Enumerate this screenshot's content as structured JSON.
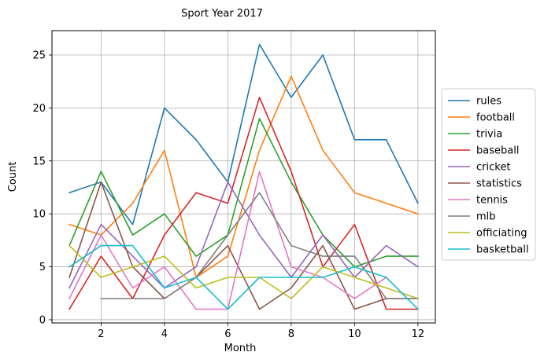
{
  "chart_data": {
    "type": "line",
    "title": "Sport Year 2017",
    "xlabel": "Month",
    "ylabel": "Count",
    "xlim": [
      0.45,
      12.55
    ],
    "ylim": [
      -0.3,
      27.3
    ],
    "xticks": [
      2,
      4,
      6,
      8,
      10,
      12
    ],
    "yticks": [
      0,
      5,
      10,
      15,
      20,
      25
    ],
    "grid": true,
    "legend_position": "right",
    "series": [
      {
        "name": "rules",
        "color": "#1f77b4",
        "x": [
          1,
          2,
          3,
          4,
          5,
          6,
          7,
          8,
          9,
          10,
          11,
          12
        ],
        "values": [
          12,
          13,
          9,
          20,
          17,
          13,
          26,
          21,
          25,
          17,
          17,
          11
        ]
      },
      {
        "name": "football",
        "color": "#ff7f0e",
        "x": [
          1,
          2,
          3,
          4,
          5,
          6,
          7,
          8,
          9,
          10,
          11,
          12
        ],
        "values": [
          9,
          8,
          11,
          16,
          4,
          6,
          16,
          23,
          16,
          12,
          11,
          10
        ]
      },
      {
        "name": "trivia",
        "color": "#2ca02c",
        "x": [
          1,
          2,
          3,
          4,
          5,
          6,
          7,
          8,
          9,
          10,
          11,
          12
        ],
        "values": [
          7,
          14,
          8,
          10,
          6,
          8,
          19,
          13,
          8,
          5,
          6,
          6
        ]
      },
      {
        "name": "baseball",
        "color": "#d62728",
        "x": [
          1,
          2,
          3,
          4,
          5,
          6,
          7,
          8,
          9,
          10,
          11,
          12
        ],
        "values": [
          1,
          6,
          2,
          8,
          12,
          11,
          21,
          14,
          5,
          9,
          1,
          1
        ]
      },
      {
        "name": "cricket",
        "color": "#9467bd",
        "x": [
          1,
          2,
          3,
          4,
          5,
          6,
          7,
          8,
          9,
          10,
          11,
          12
        ],
        "values": [
          3,
          9,
          6,
          3,
          5,
          13,
          8,
          4,
          8,
          4,
          7,
          5
        ]
      },
      {
        "name": "statistics",
        "color": "#8c564b",
        "x": [
          1,
          2,
          3,
          4,
          5,
          6,
          7,
          8,
          9,
          10,
          11,
          12
        ],
        "values": [
          4,
          13,
          5,
          2,
          4,
          7,
          1,
          3,
          7,
          1,
          2,
          2
        ]
      },
      {
        "name": "tennis",
        "color": "#e377c2",
        "x": [
          1,
          2,
          3,
          4,
          5,
          6,
          7,
          8,
          9,
          10,
          11
        ],
        "values": [
          2,
          8,
          3,
          5,
          1,
          1,
          14,
          5,
          4,
          2,
          4
        ]
      },
      {
        "name": "mlb",
        "color": "#7f7f7f",
        "x": [
          2,
          3,
          4,
          5,
          6,
          7,
          8,
          9,
          10,
          11,
          12
        ],
        "values": [
          2,
          2,
          2,
          4,
          8,
          12,
          7,
          6,
          6,
          2,
          2
        ]
      },
      {
        "name": "officiating",
        "color": "#bcbd22",
        "x": [
          1,
          2,
          3,
          4,
          5,
          6,
          7,
          8,
          9,
          10,
          11,
          12
        ],
        "values": [
          7,
          4,
          5,
          6,
          3,
          4,
          4,
          2,
          5,
          4,
          3,
          2
        ]
      },
      {
        "name": "basketball",
        "color": "#17becf",
        "x": [
          1,
          2,
          3,
          4,
          5,
          6,
          7,
          8,
          9,
          10,
          11,
          12
        ],
        "values": [
          5,
          7,
          7,
          3,
          4,
          1,
          4,
          4,
          4,
          5,
          4,
          1
        ]
      }
    ]
  }
}
